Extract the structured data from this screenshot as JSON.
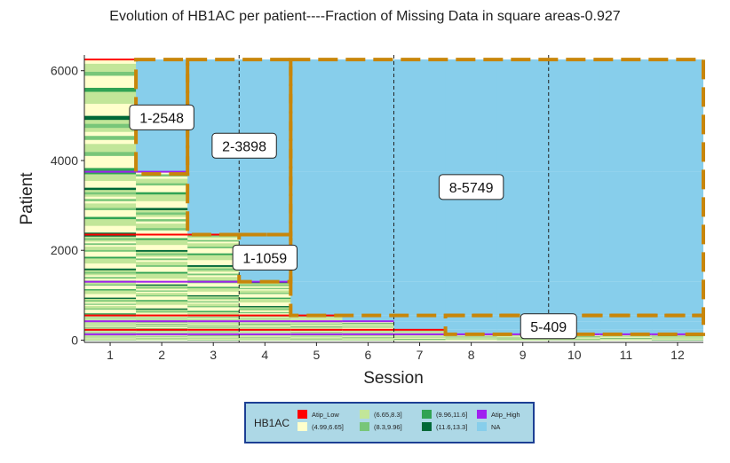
{
  "chart_data": {
    "type": "heatmap",
    "title": "Evolution of HB1AC per patient----Fraction of Missing Data in square areas-0.927",
    "xlabel": "Session",
    "ylabel": "Patient",
    "x_ticks": [
      "1",
      "2",
      "3",
      "4",
      "5",
      "6",
      "7",
      "8",
      "9",
      "10",
      "11",
      "12"
    ],
    "y_ticks": [
      "0",
      "2000",
      "4000",
      "6000"
    ],
    "xlim": [
      0.5,
      12.5
    ],
    "ylim": [
      -50,
      6350
    ],
    "total_patients": 6250,
    "grid": false,
    "legend_position": "bottom",
    "categories": [
      "Atip_Low",
      "(4.99,6.65]",
      "(6.65,8.3]",
      "(8.3,9.96]",
      "(9.96,11.6]",
      "(11.6,13.3]",
      "Atip_High",
      "NA"
    ],
    "colors": {
      "Atip_Low": "#ff0000",
      "(4.99,6.65]": "#ffffcc",
      "(6.65,8.3]": "#c2e699",
      "(8.3,9.96]": "#78c679",
      "(9.96,11.6]": "#31a354",
      "(11.6,13.3]": "#006837",
      "Atip_High": "#a020f0",
      "NA": "#87ceeb"
    },
    "dropout_groups": [
      {
        "top_patient": 6250,
        "last_session": 1
      },
      {
        "top_patient": 3750,
        "last_session": 2
      },
      {
        "top_patient": 2350,
        "last_session": 3
      },
      {
        "top_patient": 1300,
        "last_session": 4
      },
      {
        "top_patient": 550,
        "last_session": 5
      },
      {
        "top_patient": 420,
        "last_session": 6
      },
      {
        "top_patient": 230,
        "last_session": 7
      },
      {
        "top_patient": 130,
        "last_session": 12
      }
    ],
    "missing_regions": [
      {
        "label": "1-2548",
        "x_from": 1.5,
        "x_to": 2.5,
        "y_from": 3700,
        "y_to": 6250
      },
      {
        "label": "2-3898",
        "x_from": 2.5,
        "x_to": 4.5,
        "y_from": 2350,
        "y_to": 6250
      },
      {
        "label": "1-1059",
        "x_from": 3.5,
        "x_to": 4.5,
        "y_from": 1300,
        "y_to": 2350
      },
      {
        "label": "8-5749",
        "x_from": 4.5,
        "x_to": 12.5,
        "y_from": 550,
        "y_to": 6250
      },
      {
        "label": "5-409",
        "x_from": 7.5,
        "x_to": 12.5,
        "y_from": 130,
        "y_to": 550
      }
    ],
    "label_positions": [
      {
        "label": "1-2548",
        "x": 2.0,
        "y": 4960
      },
      {
        "label": "2-3898",
        "x": 3.6,
        "y": 4330
      },
      {
        "label": "1-1059",
        "x": 4.0,
        "y": 1840
      },
      {
        "label": "8-5749",
        "x": 8.0,
        "y": 3410
      },
      {
        "label": "5-409",
        "x": 9.5,
        "y": 310
      }
    ],
    "vlines": [
      3.5,
      6.5,
      9.5
    ]
  },
  "legend": {
    "title": "HB1AC",
    "items": [
      {
        "label": "Atip_Low",
        "color": "#ff0000"
      },
      {
        "label": "(4.99,6.65]",
        "color": "#ffffcc"
      },
      {
        "label": "(6.65,8.3]",
        "color": "#c2e699"
      },
      {
        "label": "(8.3,9.96]",
        "color": "#78c679"
      },
      {
        "label": "(9.96,11.6]",
        "color": "#31a354"
      },
      {
        "label": "(11.6,13.3]",
        "color": "#006837"
      },
      {
        "label": "Atip_High",
        "color": "#a020f0"
      },
      {
        "label": "NA",
        "color": "#87ceeb"
      }
    ]
  },
  "region_style": {
    "stroke": "#c8860a",
    "fill": "#87ceeb"
  }
}
